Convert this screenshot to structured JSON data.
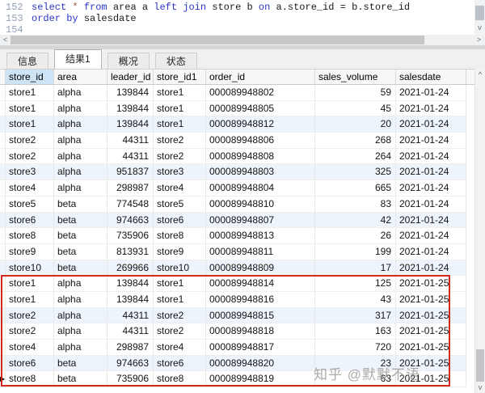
{
  "editor": {
    "lines": [
      {
        "number": "152",
        "segments": [
          {
            "t": "select ",
            "c": "kw"
          },
          {
            "t": "* ",
            "c": "op"
          },
          {
            "t": "from ",
            "c": "kw"
          },
          {
            "t": "area a ",
            "c": "id"
          },
          {
            "t": "left join ",
            "c": "kw"
          },
          {
            "t": "store b ",
            "c": "id"
          },
          {
            "t": "on ",
            "c": "kw"
          },
          {
            "t": "a.store_id = b.store_id",
            "c": "id"
          }
        ]
      },
      {
        "number": "153",
        "segments": [
          {
            "t": "order by ",
            "c": "kw"
          },
          {
            "t": "salesdate",
            "c": "id"
          }
        ]
      },
      {
        "number": "154",
        "segments": []
      }
    ]
  },
  "tabs": [
    {
      "name": "info",
      "label": "信息",
      "active": false
    },
    {
      "name": "result1",
      "label": "结果1",
      "active": true
    },
    {
      "name": "overview",
      "label": "概况",
      "active": false
    },
    {
      "name": "status",
      "label": "状态",
      "active": false
    }
  ],
  "grid": {
    "columns": [
      {
        "key": "store_id",
        "label": "store_id",
        "align": "left"
      },
      {
        "key": "area",
        "label": "area",
        "align": "left"
      },
      {
        "key": "leader_id",
        "label": "leader_id",
        "align": "right"
      },
      {
        "key": "store_id1",
        "label": "store_id1",
        "align": "left"
      },
      {
        "key": "order_id",
        "label": "order_id",
        "align": "left"
      },
      {
        "key": "sales_volume",
        "label": "sales_volume",
        "align": "right"
      },
      {
        "key": "salesdate",
        "label": "salesdate",
        "align": "left"
      }
    ],
    "selected_column": "store_id",
    "current_row_index": 18,
    "rows": [
      [
        "store1",
        "alpha",
        "139844",
        "store1",
        "000089948802",
        "59",
        "2021-01-24"
      ],
      [
        "store1",
        "alpha",
        "139844",
        "store1",
        "000089948805",
        "45",
        "2021-01-24"
      ],
      [
        "store1",
        "alpha",
        "139844",
        "store1",
        "000089948812",
        "20",
        "2021-01-24"
      ],
      [
        "store2",
        "alpha",
        "44311",
        "store2",
        "000089948806",
        "268",
        "2021-01-24"
      ],
      [
        "store2",
        "alpha",
        "44311",
        "store2",
        "000089948808",
        "264",
        "2021-01-24"
      ],
      [
        "store3",
        "alpha",
        "951837",
        "store3",
        "000089948803",
        "325",
        "2021-01-24"
      ],
      [
        "store4",
        "alpha",
        "298987",
        "store4",
        "000089948804",
        "665",
        "2021-01-24"
      ],
      [
        "store5",
        "beta",
        "774548",
        "store5",
        "000089948810",
        "83",
        "2021-01-24"
      ],
      [
        "store6",
        "beta",
        "974663",
        "store6",
        "000089948807",
        "42",
        "2021-01-24"
      ],
      [
        "store8",
        "beta",
        "735906",
        "store8",
        "000089948813",
        "26",
        "2021-01-24"
      ],
      [
        "store9",
        "beta",
        "813931",
        "store9",
        "000089948811",
        "199",
        "2021-01-24"
      ],
      [
        "store10",
        "beta",
        "269966",
        "store10",
        "000089948809",
        "17",
        "2021-01-24"
      ],
      [
        "store1",
        "alpha",
        "139844",
        "store1",
        "000089948814",
        "125",
        "2021-01-25"
      ],
      [
        "store1",
        "alpha",
        "139844",
        "store1",
        "000089948816",
        "43",
        "2021-01-25"
      ],
      [
        "store2",
        "alpha",
        "44311",
        "store2",
        "000089948815",
        "317",
        "2021-01-25"
      ],
      [
        "store2",
        "alpha",
        "44311",
        "store2",
        "000089948818",
        "163",
        "2021-01-25"
      ],
      [
        "store4",
        "alpha",
        "298987",
        "store4",
        "000089948817",
        "720",
        "2021-01-25"
      ],
      [
        "store6",
        "beta",
        "974663",
        "store6",
        "000089948820",
        "23",
        "2021-01-25"
      ],
      [
        "store8",
        "beta",
        "735906",
        "store8",
        "000089948819",
        "63",
        "2021-01-25"
      ]
    ]
  },
  "glyphs": {
    "up": "^",
    "down": "v",
    "left": "<",
    "right": ">",
    "row_marker": "▶"
  },
  "watermark": "知乎 @默默不语",
  "colors": {
    "keyword": "#2b35c9",
    "star": "#aa5544",
    "line_number": "#93a1b6",
    "highlight_box": "#d32a1e",
    "selected_header_bg": "#cde4f7",
    "row_tint": "#eef4fb"
  }
}
